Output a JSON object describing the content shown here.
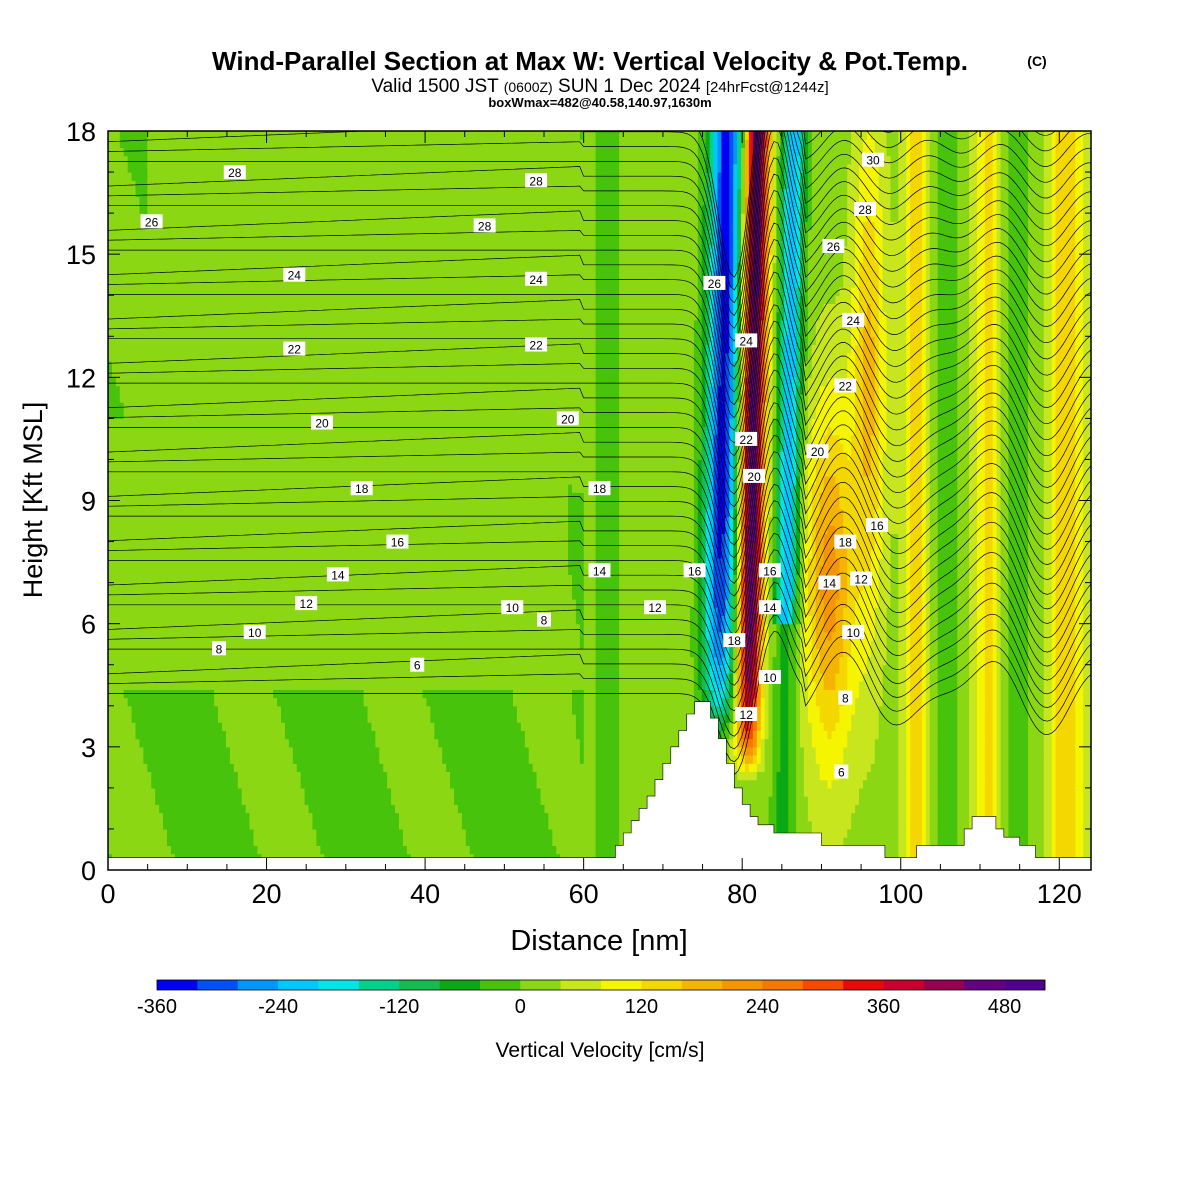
{
  "chart_data": {
    "type": "heatmap",
    "title": "Wind-Parallel Section at Max W: Vertical Velocity & Pot.Temp.",
    "title_mark": "(C)",
    "subtitle": {
      "valid": "Valid 1500 JST",
      "utc": "(0600Z)",
      "date": "SUN 1 Dec 2024",
      "forecast": "[24hrFcst@1244z]"
    },
    "box_label": "boxWmax=482@40.58,140.97,1630m",
    "xlabel": "Distance [nm]",
    "ylabel": "Height [Kft MSL]",
    "xlim": [
      0,
      124
    ],
    "ylim": [
      0,
      18
    ],
    "x_ticks": [
      0,
      20,
      40,
      60,
      80,
      100,
      120
    ],
    "y_ticks": [
      0,
      3,
      6,
      9,
      12,
      15,
      18
    ],
    "colorbar": {
      "label": "Vertical Velocity [cm/s]",
      "ticks": [
        -360,
        -240,
        -120,
        0,
        120,
        240,
        360,
        480
      ],
      "range": [
        -360,
        520
      ],
      "step": 40,
      "colors": [
        "#0000f0",
        "#0050f5",
        "#0096ff",
        "#00c8ff",
        "#00e6e6",
        "#00d28c",
        "#14bc50",
        "#0aa814",
        "#46c30a",
        "#8cd714",
        "#c8e61e",
        "#f5f500",
        "#f5d700",
        "#f5b400",
        "#f59600",
        "#f57800",
        "#f54b00",
        "#e60a0a",
        "#c8002d",
        "#960050",
        "#640082",
        "#50008c"
      ]
    },
    "theta_contours": {
      "units": "K (label values)",
      "labels": [
        {
          "v": "28",
          "x": 16,
          "y": 17.0
        },
        {
          "v": "26",
          "x": 5.5,
          "y": 15.8
        },
        {
          "v": "24",
          "x": 23.5,
          "y": 14.5
        },
        {
          "v": "22",
          "x": 23.5,
          "y": 12.7
        },
        {
          "v": "20",
          "x": 27,
          "y": 10.9
        },
        {
          "v": "18",
          "x": 32,
          "y": 9.3
        },
        {
          "v": "16",
          "x": 36.5,
          "y": 8.0
        },
        {
          "v": "14",
          "x": 29,
          "y": 7.2
        },
        {
          "v": "12",
          "x": 25,
          "y": 6.5
        },
        {
          "v": "10",
          "x": 18.5,
          "y": 5.8
        },
        {
          "v": "8",
          "x": 14,
          "y": 5.4
        },
        {
          "v": "6",
          "x": 39,
          "y": 5.0
        },
        {
          "v": "28",
          "x": 54,
          "y": 16.8
        },
        {
          "v": "28",
          "x": 47.5,
          "y": 15.7
        },
        {
          "v": "24",
          "x": 54,
          "y": 14.4
        },
        {
          "v": "22",
          "x": 54,
          "y": 12.8
        },
        {
          "v": "20",
          "x": 58,
          "y": 11.0
        },
        {
          "v": "18",
          "x": 62,
          "y": 9.3
        },
        {
          "v": "14",
          "x": 62,
          "y": 7.3
        },
        {
          "v": "10",
          "x": 51,
          "y": 6.4
        },
        {
          "v": "8",
          "x": 55,
          "y": 6.1
        },
        {
          "v": "12",
          "x": 69,
          "y": 6.4
        },
        {
          "v": "26",
          "x": 76.5,
          "y": 14.3
        },
        {
          "v": "24",
          "x": 80.5,
          "y": 12.9
        },
        {
          "v": "22",
          "x": 80.5,
          "y": 10.5
        },
        {
          "v": "20",
          "x": 81.5,
          "y": 9.6
        },
        {
          "v": "16",
          "x": 74,
          "y": 7.3
        },
        {
          "v": "16",
          "x": 83.5,
          "y": 7.3
        },
        {
          "v": "14",
          "x": 83.5,
          "y": 6.4
        },
        {
          "v": "18",
          "x": 79,
          "y": 5.6
        },
        {
          "v": "10",
          "x": 83.5,
          "y": 4.7
        },
        {
          "v": "12",
          "x": 80.5,
          "y": 3.8
        },
        {
          "v": "30",
          "x": 96.5,
          "y": 17.3
        },
        {
          "v": "28",
          "x": 95.5,
          "y": 16.1
        },
        {
          "v": "26",
          "x": 91.5,
          "y": 15.2
        },
        {
          "v": "24",
          "x": 94,
          "y": 13.4
        },
        {
          "v": "22",
          "x": 93,
          "y": 11.8
        },
        {
          "v": "20",
          "x": 89.5,
          "y": 10.2
        },
        {
          "v": "18",
          "x": 93,
          "y": 8.0
        },
        {
          "v": "16",
          "x": 97,
          "y": 8.4
        },
        {
          "v": "14",
          "x": 91,
          "y": 7.0
        },
        {
          "v": "12",
          "x": 95,
          "y": 7.1
        },
        {
          "v": "10",
          "x": 94,
          "y": 5.8
        },
        {
          "v": "8",
          "x": 93,
          "y": 4.2
        },
        {
          "v": "6",
          "x": 92.5,
          "y": 2.4
        }
      ]
    },
    "terrain": [
      [
        0,
        0.3
      ],
      [
        64,
        0.3
      ],
      [
        64,
        0.6
      ],
      [
        65,
        0.6
      ],
      [
        65,
        0.9
      ],
      [
        66,
        0.9
      ],
      [
        66,
        1.2
      ],
      [
        67,
        1.2
      ],
      [
        67,
        1.5
      ],
      [
        68,
        1.5
      ],
      [
        68,
        1.8
      ],
      [
        69,
        1.8
      ],
      [
        69,
        2.2
      ],
      [
        70,
        2.2
      ],
      [
        70,
        2.6
      ],
      [
        71,
        2.6
      ],
      [
        71,
        3.0
      ],
      [
        72,
        3.0
      ],
      [
        72,
        3.4
      ],
      [
        73,
        3.4
      ],
      [
        73,
        3.8
      ],
      [
        74,
        3.8
      ],
      [
        74,
        4.1
      ],
      [
        76,
        4.1
      ],
      [
        76,
        3.7
      ],
      [
        77,
        3.7
      ],
      [
        77,
        3.2
      ],
      [
        78,
        3.2
      ],
      [
        78,
        2.6
      ],
      [
        79,
        2.6
      ],
      [
        79,
        2.0
      ],
      [
        80,
        2.0
      ],
      [
        80,
        1.6
      ],
      [
        81,
        1.6
      ],
      [
        81,
        1.3
      ],
      [
        82,
        1.3
      ],
      [
        82,
        1.1
      ],
      [
        84,
        1.1
      ],
      [
        84,
        0.9
      ],
      [
        90,
        0.9
      ],
      [
        90,
        0.6
      ],
      [
        98,
        0.6
      ],
      [
        98,
        0.3
      ],
      [
        102,
        0.3
      ],
      [
        102,
        0.6
      ],
      [
        108,
        0.6
      ],
      [
        108,
        1.0
      ],
      [
        109,
        1.0
      ],
      [
        109,
        1.3
      ],
      [
        112,
        1.3
      ],
      [
        112,
        1.0
      ],
      [
        113,
        1.0
      ],
      [
        113,
        0.8
      ],
      [
        115,
        0.8
      ],
      [
        115,
        0.6
      ],
      [
        117,
        0.6
      ],
      [
        117,
        0.3
      ],
      [
        124,
        0.3
      ]
    ]
  }
}
